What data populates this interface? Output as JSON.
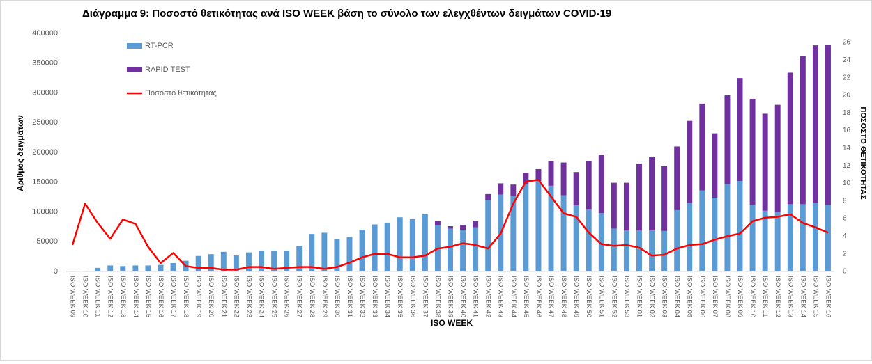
{
  "chart_data": {
    "type": "bar-line",
    "title": "Διάγραμμα 9: Ποσοστό θετικότητας ανά ISO WEEK βάση το σύνολο των ελεγχθέντων δειγμάτων COVID-19",
    "x_label": "ISO WEEK",
    "y_label": "Αριθμός δειγμάτων",
    "y2_label": "ΠΟΣΟΣΤΟ ΘΕΤΙΚΟΤΗΤΑΣ",
    "categories": [
      "ISO WEEK 09",
      "ISO WEEK 10",
      "ISO WEEK 11",
      "ISO WEEK 12",
      "ISO WEEK 13",
      "ISO WEEK 14",
      "ISO WEEK 15",
      "ISO WEEK 16",
      "ISO WEEK 17",
      "ISO WEEK 18",
      "ISO WEEK 19",
      "ISO WEEK 20",
      "ISO WEEK 21",
      "ISO WEEK 22",
      "ISO WEEK 23",
      "ISO WEEK 24",
      "ISO WEEK 25",
      "ISO WEEK 26",
      "ISO WEEK 27",
      "ISO WEEK 28",
      "ISO WEEK 29",
      "ISO WEEK 30",
      "ISO WEEK 31",
      "ISO WEEK 32",
      "ISO WEEK 33",
      "ISO WEEK 34",
      "ISO WEEK 35",
      "ISO WEEK 36",
      "ISO WEEK 37",
      "ISO WEEK 38",
      "ISO WEEK 39",
      "ISO WEEK 40",
      "ISO WEEK 41",
      "ISO WEEK 42",
      "ISO WEEK 43",
      "ISO WEEK 44",
      "ISO WEEK 45",
      "ISO WEEK 46",
      "ISO WEEK 47",
      "ISO WEEK 48",
      "ISO WEEK 49",
      "ISO WEEK 50",
      "ISO WEEK 51",
      "ISO WEEK 52",
      "ISO WEEK 53",
      "ISO WEEK 01",
      "ISO WEEK 02",
      "ISO WEEK 03",
      "ISO WEEK 04",
      "ISO WEEK 05",
      "ISO WEEK 06",
      "ISO WEEK 07",
      "ISO WEEK 08",
      "ISO WEEK 09",
      "ISO WEEK 10",
      "ISO WEEK 11",
      "ISO WEEK 12",
      "ISO WEEK 13",
      "ISO WEEK 14",
      "ISO WEEK 15",
      "ISO WEEK 16"
    ],
    "series": [
      {
        "name": "RT-PCR",
        "kind": "bar",
        "color": "#5b9bd5",
        "values": [
          200,
          500,
          6000,
          10000,
          9000,
          10000,
          10000,
          11000,
          14000,
          18000,
          26000,
          29000,
          33000,
          27000,
          32000,
          35000,
          35000,
          35000,
          43000,
          63000,
          65000,
          54000,
          58000,
          70000,
          79000,
          82000,
          91000,
          88000,
          96000,
          78000,
          72000,
          70000,
          74000,
          120000,
          129000,
          127000,
          147000,
          152000,
          144000,
          128000,
          111000,
          104000,
          98000,
          72000,
          69000,
          69000,
          69000,
          68000,
          103000,
          115000,
          136000,
          124000,
          147000,
          152000,
          112000,
          102000,
          100000,
          113000,
          113000,
          115000,
          112000
        ]
      },
      {
        "name": "RAPID TEST",
        "kind": "bar",
        "color": "#7030a0",
        "values": [
          0,
          0,
          0,
          0,
          0,
          0,
          0,
          0,
          0,
          0,
          0,
          0,
          0,
          0,
          0,
          0,
          0,
          0,
          0,
          0,
          0,
          0,
          0,
          0,
          0,
          0,
          0,
          0,
          0,
          7000,
          4000,
          8000,
          11000,
          10000,
          19000,
          19000,
          19000,
          20000,
          42000,
          55000,
          56000,
          81000,
          98000,
          77000,
          80000,
          112000,
          124000,
          109000,
          107000,
          138000,
          146000,
          108000,
          149000,
          173000,
          178000,
          163000,
          180000,
          221000,
          249000,
          265000,
          269000
        ]
      },
      {
        "name": "Ποσοστό θετικότητας",
        "kind": "line",
        "axis": "y2",
        "color": "#ff0000",
        "values": [
          3.0,
          7.7,
          5.5,
          3.7,
          5.9,
          5.4,
          2.8,
          0.95,
          2.1,
          0.6,
          0.4,
          0.4,
          0.2,
          0.2,
          0.5,
          0.5,
          0.3,
          0.4,
          0.5,
          0.5,
          0.3,
          0.5,
          1.0,
          1.6,
          2.0,
          2.0,
          1.6,
          1.6,
          1.8,
          2.6,
          2.8,
          3.2,
          3.0,
          2.6,
          4.3,
          7.7,
          10.2,
          10.4,
          8.5,
          6.6,
          6.2,
          4.4,
          3.1,
          2.9,
          3.0,
          2.7,
          1.8,
          1.9,
          2.6,
          3.0,
          3.1,
          3.6,
          4.0,
          4.3,
          5.7,
          6.1,
          6.2,
          6.5,
          5.5,
          5.0,
          4.4
        ]
      }
    ],
    "ylim": [
      0,
      400000
    ],
    "yticks": [
      0,
      50000,
      100000,
      150000,
      200000,
      250000,
      300000,
      350000,
      400000
    ],
    "y2lim": [
      0,
      26
    ],
    "y2ticks": [
      0,
      2,
      4,
      6,
      8,
      10,
      12,
      14,
      16,
      18,
      20,
      22,
      24,
      26
    ],
    "grid": false,
    "legend": "upper left"
  }
}
